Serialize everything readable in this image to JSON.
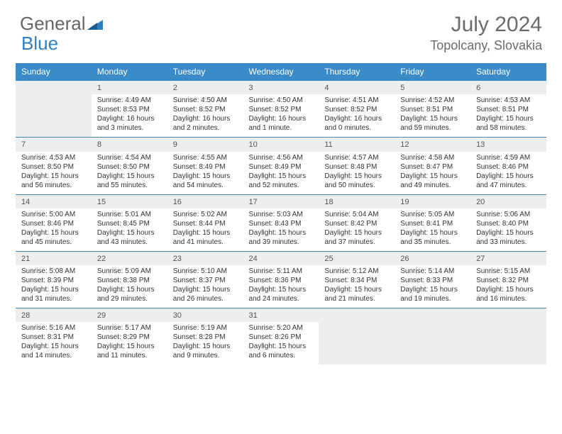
{
  "logo": {
    "text1": "General",
    "text2": "Blue"
  },
  "title": "July 2024",
  "location": "Topolcany, Slovakia",
  "colors": {
    "header_bg": "#3b8bc9",
    "header_text": "#ffffff",
    "daynum_bg": "#eceeef",
    "row_divider": "#3b8bc9",
    "body_text": "#333333",
    "title_text": "#6b6b6b"
  },
  "day_headers": [
    "Sunday",
    "Monday",
    "Tuesday",
    "Wednesday",
    "Thursday",
    "Friday",
    "Saturday"
  ],
  "weeks": [
    [
      null,
      {
        "n": "1",
        "sr": "Sunrise: 4:49 AM",
        "ss": "Sunset: 8:53 PM",
        "d1": "Daylight: 16 hours",
        "d2": "and 3 minutes."
      },
      {
        "n": "2",
        "sr": "Sunrise: 4:50 AM",
        "ss": "Sunset: 8:52 PM",
        "d1": "Daylight: 16 hours",
        "d2": "and 2 minutes."
      },
      {
        "n": "3",
        "sr": "Sunrise: 4:50 AM",
        "ss": "Sunset: 8:52 PM",
        "d1": "Daylight: 16 hours",
        "d2": "and 1 minute."
      },
      {
        "n": "4",
        "sr": "Sunrise: 4:51 AM",
        "ss": "Sunset: 8:52 PM",
        "d1": "Daylight: 16 hours",
        "d2": "and 0 minutes."
      },
      {
        "n": "5",
        "sr": "Sunrise: 4:52 AM",
        "ss": "Sunset: 8:51 PM",
        "d1": "Daylight: 15 hours",
        "d2": "and 59 minutes."
      },
      {
        "n": "6",
        "sr": "Sunrise: 4:53 AM",
        "ss": "Sunset: 8:51 PM",
        "d1": "Daylight: 15 hours",
        "d2": "and 58 minutes."
      }
    ],
    [
      {
        "n": "7",
        "sr": "Sunrise: 4:53 AM",
        "ss": "Sunset: 8:50 PM",
        "d1": "Daylight: 15 hours",
        "d2": "and 56 minutes."
      },
      {
        "n": "8",
        "sr": "Sunrise: 4:54 AM",
        "ss": "Sunset: 8:50 PM",
        "d1": "Daylight: 15 hours",
        "d2": "and 55 minutes."
      },
      {
        "n": "9",
        "sr": "Sunrise: 4:55 AM",
        "ss": "Sunset: 8:49 PM",
        "d1": "Daylight: 15 hours",
        "d2": "and 54 minutes."
      },
      {
        "n": "10",
        "sr": "Sunrise: 4:56 AM",
        "ss": "Sunset: 8:49 PM",
        "d1": "Daylight: 15 hours",
        "d2": "and 52 minutes."
      },
      {
        "n": "11",
        "sr": "Sunrise: 4:57 AM",
        "ss": "Sunset: 8:48 PM",
        "d1": "Daylight: 15 hours",
        "d2": "and 50 minutes."
      },
      {
        "n": "12",
        "sr": "Sunrise: 4:58 AM",
        "ss": "Sunset: 8:47 PM",
        "d1": "Daylight: 15 hours",
        "d2": "and 49 minutes."
      },
      {
        "n": "13",
        "sr": "Sunrise: 4:59 AM",
        "ss": "Sunset: 8:46 PM",
        "d1": "Daylight: 15 hours",
        "d2": "and 47 minutes."
      }
    ],
    [
      {
        "n": "14",
        "sr": "Sunrise: 5:00 AM",
        "ss": "Sunset: 8:46 PM",
        "d1": "Daylight: 15 hours",
        "d2": "and 45 minutes."
      },
      {
        "n": "15",
        "sr": "Sunrise: 5:01 AM",
        "ss": "Sunset: 8:45 PM",
        "d1": "Daylight: 15 hours",
        "d2": "and 43 minutes."
      },
      {
        "n": "16",
        "sr": "Sunrise: 5:02 AM",
        "ss": "Sunset: 8:44 PM",
        "d1": "Daylight: 15 hours",
        "d2": "and 41 minutes."
      },
      {
        "n": "17",
        "sr": "Sunrise: 5:03 AM",
        "ss": "Sunset: 8:43 PM",
        "d1": "Daylight: 15 hours",
        "d2": "and 39 minutes."
      },
      {
        "n": "18",
        "sr": "Sunrise: 5:04 AM",
        "ss": "Sunset: 8:42 PM",
        "d1": "Daylight: 15 hours",
        "d2": "and 37 minutes."
      },
      {
        "n": "19",
        "sr": "Sunrise: 5:05 AM",
        "ss": "Sunset: 8:41 PM",
        "d1": "Daylight: 15 hours",
        "d2": "and 35 minutes."
      },
      {
        "n": "20",
        "sr": "Sunrise: 5:06 AM",
        "ss": "Sunset: 8:40 PM",
        "d1": "Daylight: 15 hours",
        "d2": "and 33 minutes."
      }
    ],
    [
      {
        "n": "21",
        "sr": "Sunrise: 5:08 AM",
        "ss": "Sunset: 8:39 PM",
        "d1": "Daylight: 15 hours",
        "d2": "and 31 minutes."
      },
      {
        "n": "22",
        "sr": "Sunrise: 5:09 AM",
        "ss": "Sunset: 8:38 PM",
        "d1": "Daylight: 15 hours",
        "d2": "and 29 minutes."
      },
      {
        "n": "23",
        "sr": "Sunrise: 5:10 AM",
        "ss": "Sunset: 8:37 PM",
        "d1": "Daylight: 15 hours",
        "d2": "and 26 minutes."
      },
      {
        "n": "24",
        "sr": "Sunrise: 5:11 AM",
        "ss": "Sunset: 8:36 PM",
        "d1": "Daylight: 15 hours",
        "d2": "and 24 minutes."
      },
      {
        "n": "25",
        "sr": "Sunrise: 5:12 AM",
        "ss": "Sunset: 8:34 PM",
        "d1": "Daylight: 15 hours",
        "d2": "and 21 minutes."
      },
      {
        "n": "26",
        "sr": "Sunrise: 5:14 AM",
        "ss": "Sunset: 8:33 PM",
        "d1": "Daylight: 15 hours",
        "d2": "and 19 minutes."
      },
      {
        "n": "27",
        "sr": "Sunrise: 5:15 AM",
        "ss": "Sunset: 8:32 PM",
        "d1": "Daylight: 15 hours",
        "d2": "and 16 minutes."
      }
    ],
    [
      {
        "n": "28",
        "sr": "Sunrise: 5:16 AM",
        "ss": "Sunset: 8:31 PM",
        "d1": "Daylight: 15 hours",
        "d2": "and 14 minutes."
      },
      {
        "n": "29",
        "sr": "Sunrise: 5:17 AM",
        "ss": "Sunset: 8:29 PM",
        "d1": "Daylight: 15 hours",
        "d2": "and 11 minutes."
      },
      {
        "n": "30",
        "sr": "Sunrise: 5:19 AM",
        "ss": "Sunset: 8:28 PM",
        "d1": "Daylight: 15 hours",
        "d2": "and 9 minutes."
      },
      {
        "n": "31",
        "sr": "Sunrise: 5:20 AM",
        "ss": "Sunset: 8:26 PM",
        "d1": "Daylight: 15 hours",
        "d2": "and 6 minutes."
      },
      null,
      null,
      null
    ]
  ]
}
